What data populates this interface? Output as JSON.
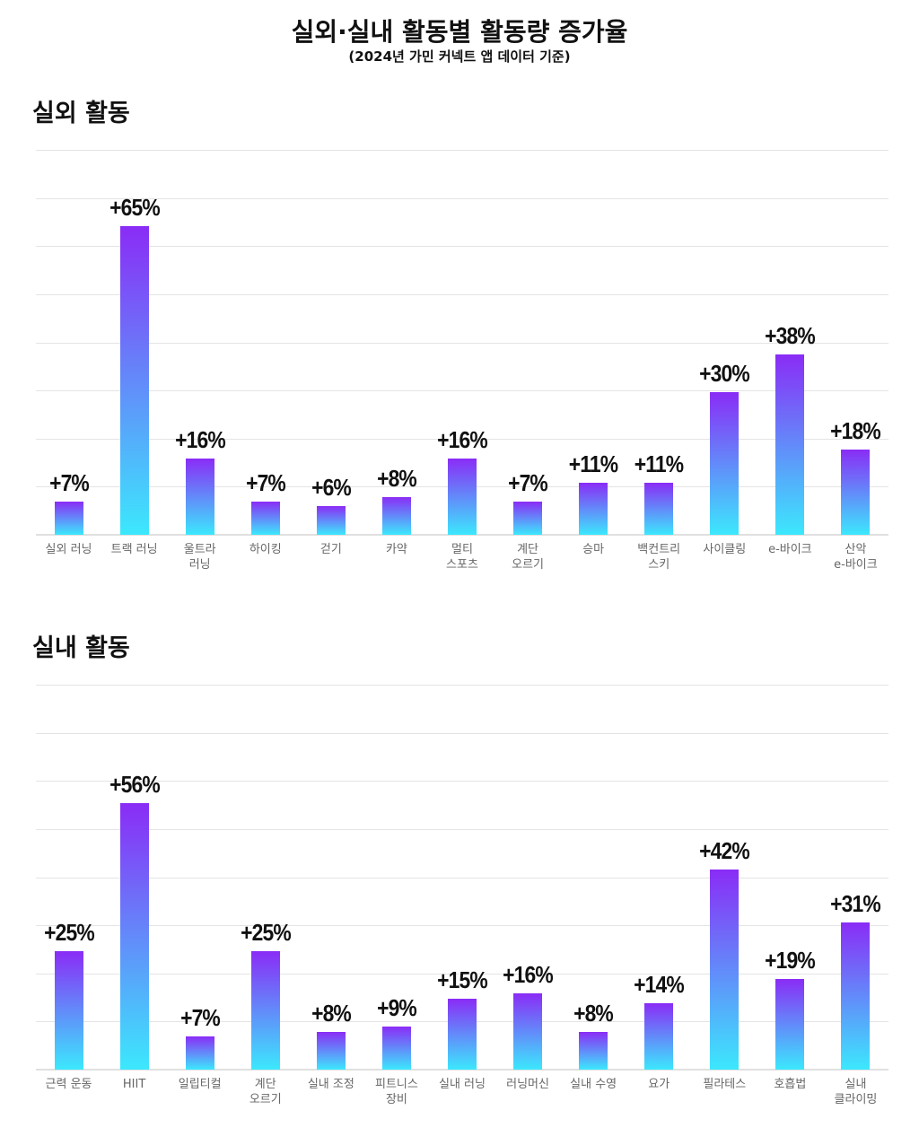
{
  "title": "실외·실내 활동별 활동량 증가율",
  "subtitle": "(2024년 가민 커넥트 앱 데이터 기준)",
  "chart_data": [
    {
      "type": "bar",
      "title": "실외 활동",
      "categories": [
        "실외 러닝",
        "트랙 러닝",
        "울트라\n러닝",
        "하이킹",
        "걷기",
        "카약",
        "멀티\n스포츠",
        "계단\n오르기",
        "승마",
        "백컨트리\n스키",
        "사이클링",
        "e-바이크",
        "산악\ne-바이크"
      ],
      "values": [
        7,
        65,
        16,
        7,
        6,
        8,
        16,
        7,
        11,
        11,
        30,
        38,
        18
      ],
      "value_labels": [
        "+7%",
        "+65%",
        "+16%",
        "+7%",
        "+6%",
        "+8%",
        "+16%",
        "+7%",
        "+11%",
        "+11%",
        "+30%",
        "+38%",
        "+18%"
      ],
      "gradient": [
        "#8a2cf6",
        "#3ce8fd"
      ],
      "grid": true
    },
    {
      "type": "bar",
      "title": "실내 활동",
      "categories": [
        "근력 운동",
        "HIIT",
        "일립티컬",
        "계단\n오르기",
        "실내 조정",
        "피트니스\n장비",
        "실내 러닝",
        "러닝머신",
        "실내 수영",
        "요가",
        "필라테스",
        "호흡법",
        "실내\n클라이밍"
      ],
      "values": [
        25,
        56,
        7,
        25,
        8,
        9,
        15,
        16,
        8,
        14,
        42,
        19,
        31
      ],
      "value_labels": [
        "+25%",
        "+56%",
        "+7%",
        "+25%",
        "+8%",
        "+9%",
        "+15%",
        "+16%",
        "+8%",
        "+14%",
        "+42%",
        "+19%",
        "+31%"
      ],
      "gradient": [
        "#8a2cf6",
        "#3ce8fd"
      ],
      "grid": true
    }
  ]
}
